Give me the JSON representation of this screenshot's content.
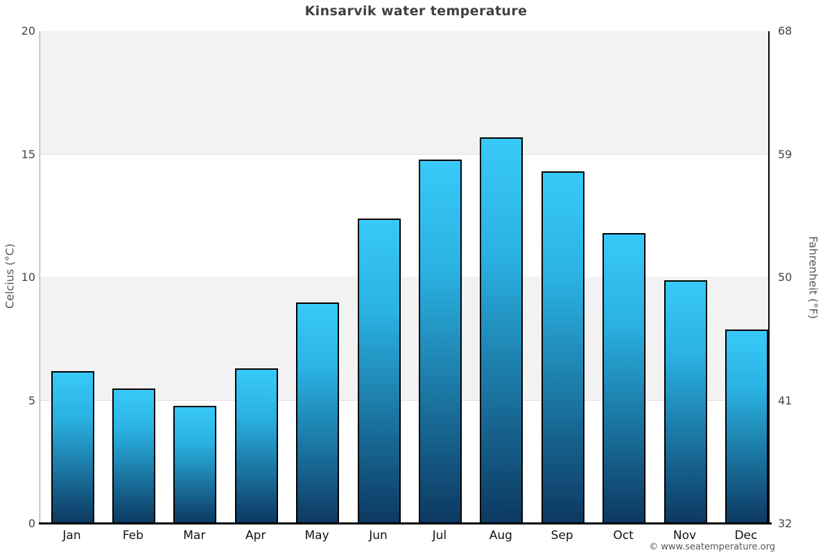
{
  "chart_data": {
    "type": "bar",
    "title": "Kinsarvik water temperature",
    "categories": [
      "Jan",
      "Feb",
      "Mar",
      "Apr",
      "May",
      "Jun",
      "Jul",
      "Aug",
      "Sep",
      "Oct",
      "Nov",
      "Dec"
    ],
    "values": [
      6.2,
      5.5,
      4.8,
      6.3,
      9.0,
      12.4,
      14.8,
      15.7,
      14.3,
      11.8,
      9.9,
      7.9
    ],
    "ylabel_left": "Celcius (°C)",
    "ylabel_right": "Fahrenheit (°F)",
    "ylim": [
      0,
      20
    ],
    "yticks_left": [
      0,
      5,
      10,
      15,
      20
    ],
    "yticks_right": [
      32,
      41,
      50,
      59,
      68
    ],
    "legend": "none",
    "grid": "alternating horizontal bands every 5°C",
    "footer": "© www.seatemperature.org",
    "colors": {
      "band_gray": "#f2f2f2",
      "band_white": "#ffffff",
      "bar_gradient_top": "#38c9f8",
      "bar_gradient_mid": "#2ab2e3",
      "bar_gradient_bottom": "#0c3860",
      "bar_border": "#000000",
      "left_axis_line": "#9a9a9a",
      "bottom_axis_line": "#000000",
      "right_axis_line": "#000000",
      "title_text": "#404040",
      "tick_text": "#444444",
      "month_text": "#111111",
      "axis_title_text": "#555555",
      "footer_text": "#555555"
    }
  }
}
